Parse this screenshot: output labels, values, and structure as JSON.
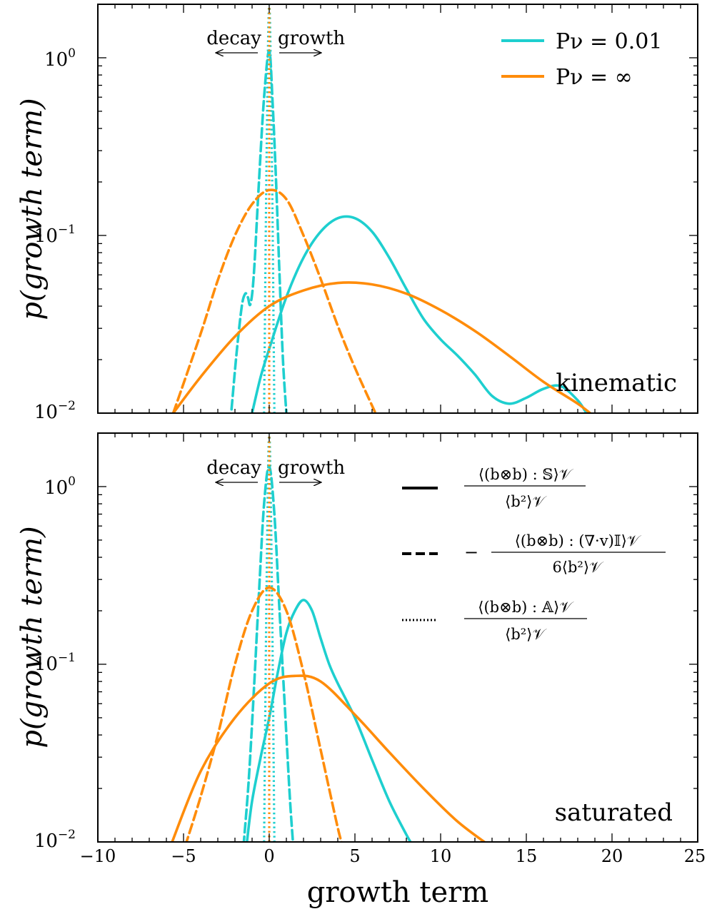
{
  "colors": {
    "cyan": "#1ecfcf",
    "orange": "#ff8c0a",
    "axis": "#000000"
  },
  "shared": {
    "ylabel": "p(growth term)",
    "xlabel": "growth term",
    "xlim": [
      -10,
      25
    ],
    "ylim": [
      0.01,
      2.0
    ],
    "xticks": [
      -10,
      -5,
      0,
      5,
      10,
      15,
      20,
      25
    ],
    "xtick_labels": [
      "−10",
      "−5",
      "0",
      "5",
      "10",
      "15",
      "20",
      "25"
    ],
    "yticks": [
      0.01,
      0.1,
      1
    ],
    "ytick_mantissa": "10",
    "ytick_exponents": [
      "−2",
      "−1",
      "0"
    ],
    "decay_label": "decay",
    "growth_label": "growth"
  },
  "legend_top": {
    "entries": [
      {
        "label": "Pν = 0.01",
        "color": "#1ecfcf"
      },
      {
        "label": "Pν = ∞",
        "color": "#ff8c0a"
      }
    ]
  },
  "legend_bottom": {
    "entries": [
      {
        "style": "solid",
        "numerator": "⟨(b⊗b) : 𝕊⟩𝒱",
        "denominator": "⟨b²⟩𝒱",
        "prefix": ""
      },
      {
        "style": "dashed",
        "numerator": "⟨(b⊗b) : (∇·v)𝕀⟩𝒱",
        "denominator": "6⟨b²⟩𝒱",
        "prefix": "−"
      },
      {
        "style": "dotted",
        "numerator": "⟨(b⊗b) : 𝔸⟩𝒱",
        "denominator": "⟨b²⟩𝒱",
        "prefix": ""
      }
    ]
  },
  "chart_data": [
    {
      "type": "line",
      "title": "kinematic",
      "xlabel": "",
      "ylabel": "p(growth term)",
      "yscale": "log",
      "xlim": [
        -10,
        25
      ],
      "ylim": [
        0.01,
        2.0
      ],
      "series": [
        {
          "name": "Pν = 0.01 strain (solid)",
          "color": "cyan",
          "style": "solid",
          "x": [
            -1.0,
            -0.5,
            0,
            1,
            2,
            3,
            4,
            5,
            6,
            7,
            8,
            9,
            10,
            11,
            12,
            13,
            14,
            15,
            16,
            17,
            18,
            18.5
          ],
          "y": [
            0.01,
            0.016,
            0.023,
            0.045,
            0.075,
            0.105,
            0.125,
            0.125,
            0.105,
            0.075,
            0.05,
            0.034,
            0.026,
            0.021,
            0.0165,
            0.0125,
            0.0113,
            0.0122,
            0.0137,
            0.0142,
            0.0118,
            0.01
          ]
        },
        {
          "name": "Pν = 0.01 compression (dashed)",
          "color": "cyan",
          "style": "dashed",
          "x": [
            -2.2,
            -1.9,
            -1.6,
            -1.4,
            -1.25,
            -1.1,
            -0.9,
            -0.6,
            -0.3,
            0,
            0.2,
            0.4,
            0.6,
            0.8,
            1.0
          ],
          "y": [
            0.0105,
            0.022,
            0.04,
            0.047,
            0.045,
            0.041,
            0.06,
            0.2,
            0.6,
            1.1,
            0.55,
            0.2,
            0.06,
            0.02,
            0.01
          ]
        },
        {
          "name": "Pν = 0.01 rotation (dotted)",
          "color": "cyan",
          "style": "dotted",
          "x": [
            -0.3,
            -0.15,
            0,
            0.15,
            0.3
          ],
          "y": [
            0.01,
            0.3,
            2.0,
            0.3,
            0.01
          ]
        },
        {
          "name": "Pν = ∞ strain (solid)",
          "color": "orange",
          "style": "solid",
          "x": [
            -5.6,
            -4,
            -2,
            0,
            2,
            4,
            6,
            8,
            10,
            12,
            14,
            16,
            18,
            19
          ],
          "y": [
            0.01,
            0.016,
            0.027,
            0.04,
            0.049,
            0.054,
            0.053,
            0.047,
            0.038,
            0.029,
            0.021,
            0.015,
            0.0113,
            0.0095
          ]
        },
        {
          "name": "Pν = ∞ compression (dashed)",
          "color": "orange",
          "style": "dashed",
          "x": [
            -5.6,
            -4,
            -3,
            -2,
            -1,
            0,
            1,
            2,
            3,
            4,
            5,
            6.2
          ],
          "y": [
            0.01,
            0.028,
            0.056,
            0.1,
            0.15,
            0.18,
            0.16,
            0.1,
            0.057,
            0.031,
            0.018,
            0.01
          ]
        },
        {
          "name": "Pν = ∞ rotation (dotted)",
          "color": "orange",
          "style": "dotted",
          "x": [
            0,
            0
          ],
          "y": [
            0.01,
            2.0
          ]
        }
      ]
    },
    {
      "type": "line",
      "title": "saturated",
      "xlabel": "growth term",
      "ylabel": "p(growth term)",
      "yscale": "log",
      "xlim": [
        -10,
        25
      ],
      "ylim": [
        0.01,
        2.0
      ],
      "series": [
        {
          "name": "Pν = 0.01 strain (solid)",
          "color": "cyan",
          "style": "solid",
          "x": [
            -1.3,
            -1,
            -0.5,
            0,
            0.5,
            1,
            1.5,
            2,
            2.5,
            3,
            3.5,
            4,
            5,
            6,
            7,
            8,
            8.3
          ],
          "y": [
            0.01,
            0.017,
            0.03,
            0.05,
            0.09,
            0.15,
            0.2,
            0.23,
            0.2,
            0.14,
            0.1,
            0.078,
            0.05,
            0.029,
            0.017,
            0.011,
            0.0098
          ]
        },
        {
          "name": "Pν = 0.01 compression (dashed)",
          "color": "cyan",
          "style": "dashed",
          "x": [
            -1.5,
            -1.2,
            -0.9,
            -0.6,
            -0.3,
            0,
            0.3,
            0.6,
            0.9,
            1.2,
            1.4
          ],
          "y": [
            0.0095,
            0.022,
            0.07,
            0.25,
            0.8,
            1.3,
            0.7,
            0.2,
            0.06,
            0.018,
            0.0095
          ]
        },
        {
          "name": "Pν = 0.01 rotation (dotted)",
          "color": "cyan",
          "style": "dotted",
          "x": [
            -0.3,
            -0.15,
            0,
            0.15,
            0.3
          ],
          "y": [
            0.01,
            0.3,
            2.0,
            0.3,
            0.01
          ]
        },
        {
          "name": "Pν = ∞ strain (solid)",
          "color": "orange",
          "style": "solid",
          "x": [
            -5.7,
            -4,
            -2,
            0,
            1.5,
            3,
            5,
            7,
            9,
            11,
            13
          ],
          "y": [
            0.0098,
            0.025,
            0.05,
            0.078,
            0.086,
            0.08,
            0.052,
            0.032,
            0.02,
            0.013,
            0.0093
          ]
        },
        {
          "name": "Pν = ∞ compression (dashed)",
          "color": "orange",
          "style": "dashed",
          "x": [
            -4.9,
            -4,
            -3,
            -2,
            -1,
            0,
            1,
            2,
            3,
            4,
            4.3
          ],
          "y": [
            0.0095,
            0.018,
            0.04,
            0.1,
            0.2,
            0.27,
            0.2,
            0.09,
            0.033,
            0.012,
            0.0095
          ]
        },
        {
          "name": "Pν = ∞ rotation (dotted)",
          "color": "orange",
          "style": "dotted",
          "x": [
            0,
            0
          ],
          "y": [
            0.01,
            2.0
          ]
        }
      ]
    }
  ]
}
